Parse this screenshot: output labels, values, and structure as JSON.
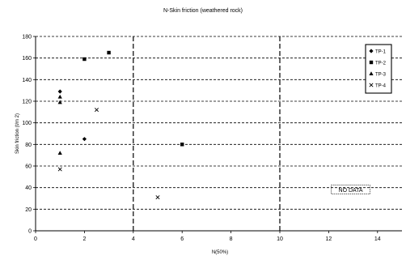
{
  "chart_data": {
    "type": "scatter",
    "title": "N-Skin friction (weathered rock)",
    "xlabel": "N(50%)",
    "ylabel": "Skin friction (t/m 2)",
    "xlim": [
      0,
      15
    ],
    "ylim": [
      0,
      180
    ],
    "x_ticks": [
      0,
      2,
      4,
      6,
      8,
      10,
      12,
      14
    ],
    "y_ticks": [
      0,
      20,
      40,
      60,
      80,
      100,
      120,
      140,
      160,
      180
    ],
    "grid": "horizontal dashed",
    "vertical_dividers": [
      4,
      10
    ],
    "legend_position": "top-right",
    "series": [
      {
        "name": "TP-1",
        "marker": "diamond",
        "points": [
          [
            1,
            129
          ],
          [
            2,
            85
          ]
        ]
      },
      {
        "name": "TP-2",
        "marker": "square",
        "points": [
          [
            2,
            159
          ],
          [
            3,
            165
          ],
          [
            6,
            80
          ]
        ]
      },
      {
        "name": "TP-3",
        "marker": "triangle",
        "points": [
          [
            1,
            124
          ],
          [
            1,
            119
          ],
          [
            1,
            72
          ]
        ]
      },
      {
        "name": "TP-4",
        "marker": "x",
        "points": [
          [
            1,
            57
          ],
          [
            2.5,
            112
          ],
          [
            5,
            31
          ]
        ]
      }
    ],
    "annotations": [
      {
        "text": "NO DATA",
        "x": 12.9,
        "y": 37
      }
    ]
  }
}
